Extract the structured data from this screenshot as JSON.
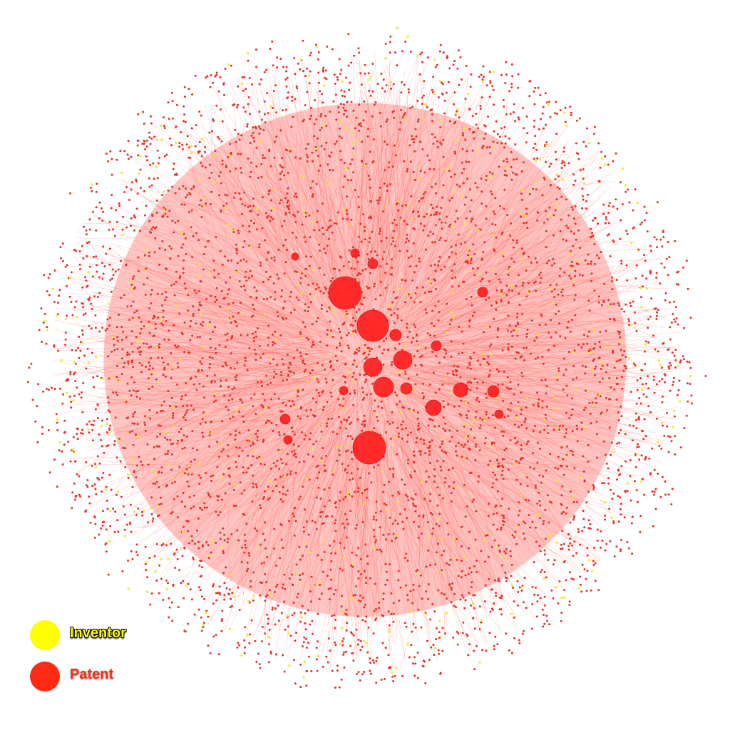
{
  "legend": {
    "inventor": {
      "label": "Inventor",
      "color": "#ffff00"
    },
    "patent": {
      "label": "Patent",
      "color": "#ff2a12"
    }
  },
  "colors": {
    "patent_node": "#e8302a",
    "patent_edge": "#ff5a50",
    "inventor_node": "#f5f03a",
    "hub": "#ff2020"
  }
}
